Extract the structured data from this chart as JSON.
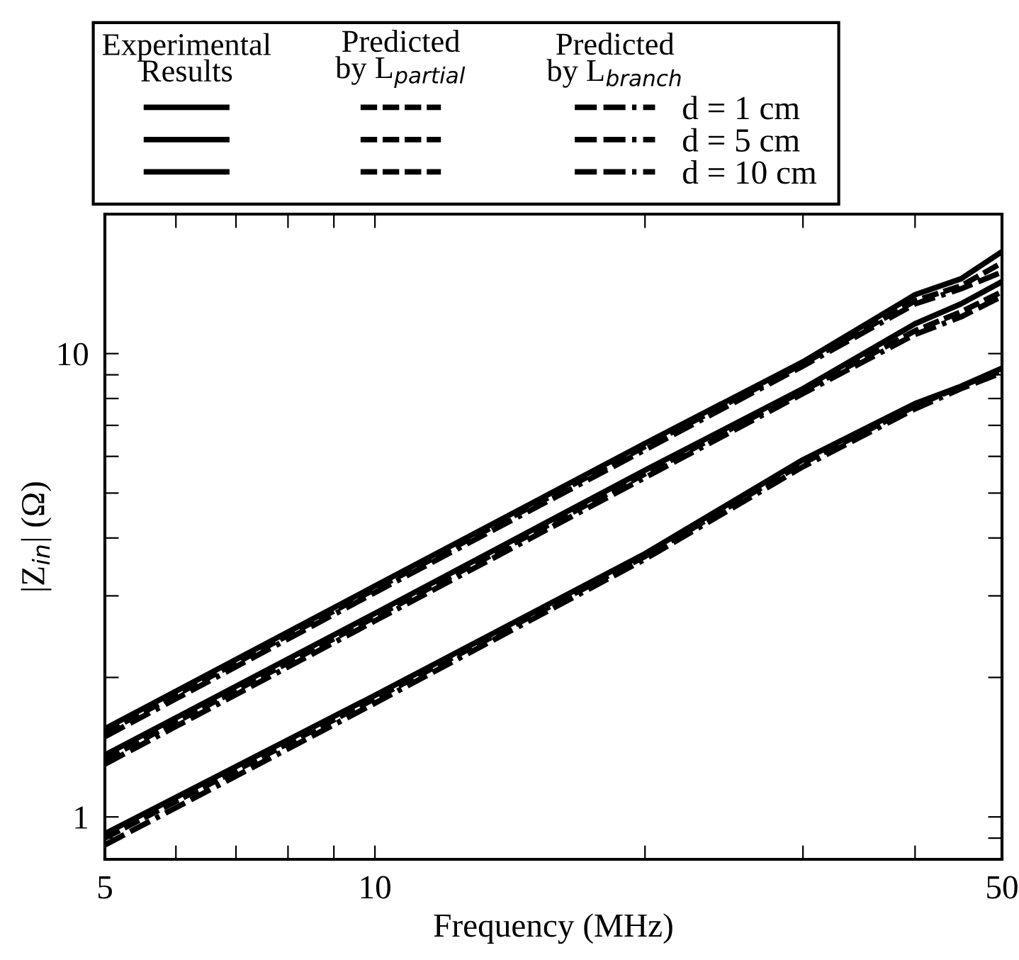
{
  "chart_data": {
    "type": "line",
    "xlabel": "Frequency (MHz)",
    "ylabel": "|Z$_{in}$| (Ω)",
    "log": "xy",
    "xlim": [
      5,
      50
    ],
    "ylim": [
      0.81,
      20
    ],
    "xticks": [
      5,
      {
        "value": 6,
        "label": null
      },
      {
        "value": 7,
        "label": null
      },
      {
        "value": 8,
        "label": null
      },
      {
        "value": 9,
        "label": null
      },
      10,
      {
        "value": 20,
        "label": null
      },
      {
        "value": 30,
        "label": null
      },
      {
        "value": 40,
        "label": null
      },
      50
    ],
    "yticks": [
      {
        "value": 0.9,
        "label": null
      },
      1,
      {
        "value": 2,
        "label": null
      },
      {
        "value": 3,
        "label": null
      },
      {
        "value": 4,
        "label": null
      },
      {
        "value": 5,
        "label": null
      },
      {
        "value": 6,
        "label": null
      },
      {
        "value": 7,
        "label": null
      },
      {
        "value": 8,
        "label": null
      },
      {
        "value": 9,
        "label": null
      },
      10,
      {
        "value": 20,
        "label": null
      }
    ],
    "x": [
      5,
      10,
      20,
      30,
      40,
      45,
      50
    ],
    "legend": "top",
    "annotations": [
      "Experimental\nResults",
      "Predicted\nby L$_{partial}$",
      "Predicted\nby L$_{branch}$"
    ],
    "series": [
      {
        "color": "#000000",
        "line_style": "solid",
        "values": [
          0.92,
          1.83,
          3.7,
          5.9,
          7.8,
          8.5,
          9.3
        ]
      },
      {
        "color": "#000000",
        "line_style": "solid",
        "values": [
          1.36,
          2.75,
          5.6,
          8.4,
          11.6,
          12.8,
          14.3
        ]
      },
      {
        "color": "#000000",
        "line_style": "solid",
        "values": [
          1.55,
          3.15,
          6.4,
          9.6,
          13.4,
          14.5,
          16.6
        ]
      },
      {
        "color": "#000000",
        "line_style": "dashed",
        "values": [
          0.9,
          1.8,
          3.65,
          5.8,
          7.7,
          8.5,
          9.2
        ]
      },
      {
        "color": "#000000",
        "line_style": "dashed",
        "values": [
          1.33,
          2.7,
          5.5,
          8.3,
          11.2,
          12.3,
          13.6
        ]
      },
      {
        "color": "#000000",
        "line_style": "dashed",
        "values": [
          1.52,
          3.1,
          6.3,
          9.5,
          13.0,
          14.0,
          15.7
        ]
      },
      {
        "name": "d = 1 cm",
        "color": "#000000",
        "line_style": "dashdot",
        "values": [
          0.87,
          1.76,
          3.6,
          5.7,
          7.6,
          8.4,
          9.1
        ]
      },
      {
        "name": "d = 5 cm",
        "color": "#000000",
        "line_style": "dashdot",
        "values": [
          1.3,
          2.65,
          5.4,
          8.2,
          11.0,
          12.0,
          13.3
        ]
      },
      {
        "name": "d = 10 cm",
        "color": "#000000",
        "line_style": "dashdot",
        "values": [
          1.49,
          3.05,
          6.2,
          9.4,
          12.8,
          13.8,
          15.0
        ]
      }
    ]
  }
}
